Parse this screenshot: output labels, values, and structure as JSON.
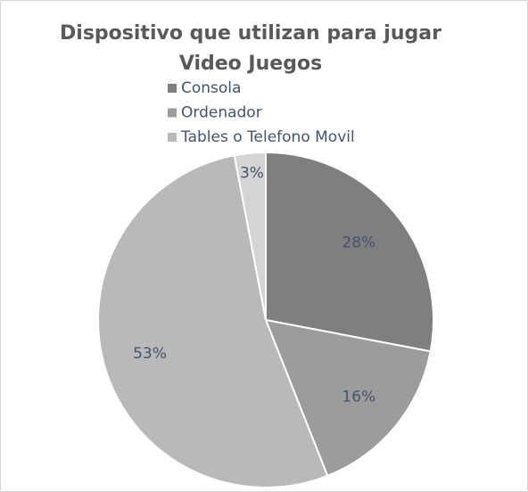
{
  "chart_data": {
    "type": "pie",
    "title": "Dispositivo que utilizan para jugar Video Juegos",
    "categories": [
      "Consola",
      "Ordenador",
      "Tables o Telefono Movil",
      null
    ],
    "values": [
      28,
      16,
      53,
      3
    ],
    "value_labels": [
      "28%",
      "16%",
      "53%",
      "3%"
    ],
    "colors": [
      "#7f7f7f",
      "#9c9c9c",
      "#b9b9b9",
      "#d4d4d4"
    ],
    "legend": "top"
  }
}
